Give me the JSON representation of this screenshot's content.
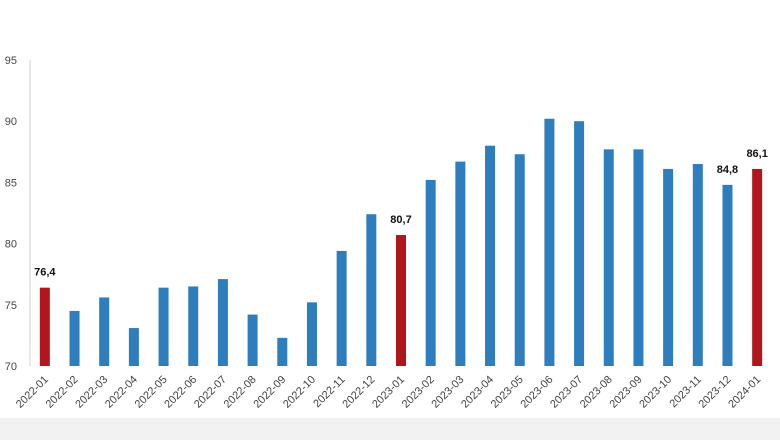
{
  "chart_data": {
    "type": "bar",
    "categories": [
      "2022-01",
      "2022-02",
      "2022-03",
      "2022-04",
      "2022-05",
      "2022-06",
      "2022-07",
      "2022-08",
      "2022-09",
      "2022-10",
      "2022-11",
      "2022-12",
      "2023-01",
      "2023-02",
      "2023-03",
      "2023-04",
      "2023-05",
      "2023-06",
      "2023-07",
      "2023-08",
      "2023-09",
      "2023-10",
      "2023-11",
      "2023-12",
      "2024-01"
    ],
    "values": [
      76.4,
      74.5,
      75.6,
      73.1,
      76.4,
      76.5,
      77.1,
      74.2,
      72.3,
      75.2,
      79.4,
      82.4,
      80.7,
      85.2,
      86.7,
      88.0,
      87.3,
      90.2,
      90.0,
      87.7,
      87.7,
      86.1,
      86.5,
      84.8,
      86.1
    ],
    "highlighted": [
      "2022-01",
      "2023-01",
      "2024-01"
    ],
    "data_labels": [
      {
        "category": "2022-01",
        "text": "76,4"
      },
      {
        "category": "2023-01",
        "text": "80,7"
      },
      {
        "category": "2023-12",
        "text": "84,8"
      },
      {
        "category": "2024-01",
        "text": "86,1"
      }
    ],
    "ylim": [
      70,
      95
    ],
    "yticks": [
      70,
      75,
      80,
      85,
      90,
      95
    ],
    "title": "",
    "xlabel": "",
    "ylabel": "",
    "grid": false,
    "colors": {
      "bar": "#2e7dbd",
      "highlight": "#b0161c",
      "axis": "#d0d0d0"
    }
  }
}
